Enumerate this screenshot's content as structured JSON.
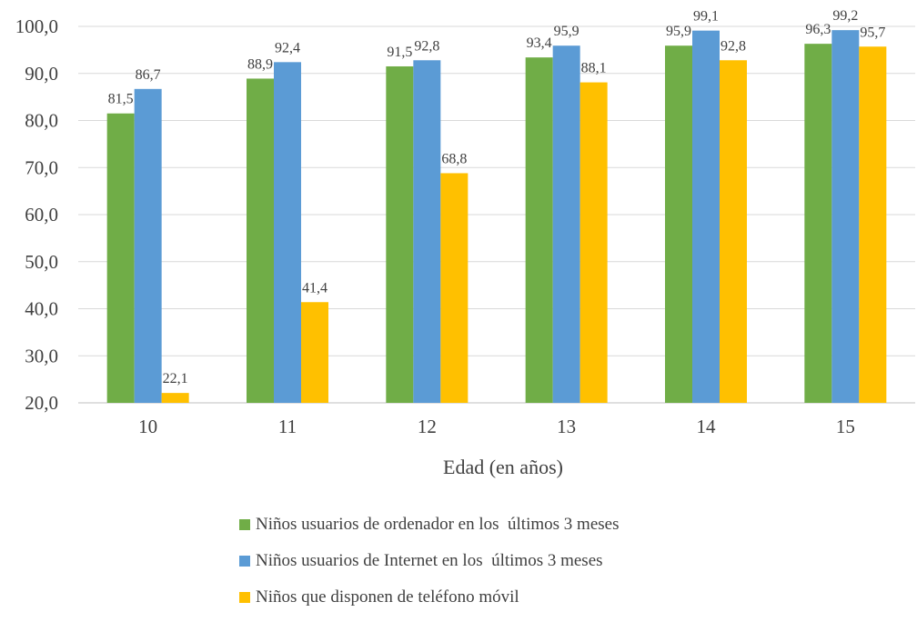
{
  "chart_data": {
    "type": "bar",
    "categories": [
      "10",
      "11",
      "12",
      "13",
      "14",
      "15"
    ],
    "series": [
      {
        "name": "Niños usuarios de ordenador en los  últimos 3 meses",
        "color": "#70AD47",
        "values": [
          81.5,
          88.9,
          91.5,
          93.4,
          95.9,
          96.3
        ]
      },
      {
        "name": "Niños usuarios de Internet en los  últimos 3 meses",
        "color": "#5B9BD5",
        "values": [
          86.7,
          92.4,
          92.8,
          95.9,
          99.1,
          99.2
        ]
      },
      {
        "name": "Niños que disponen de teléfono móvil",
        "color": "#FFC000",
        "values": [
          22.1,
          41.4,
          68.8,
          88.1,
          92.8,
          95.7
        ]
      }
    ],
    "data_labels": [
      [
        "81,5",
        "88,9",
        "91,5",
        "93,4",
        "95,9",
        "96,3"
      ],
      [
        "86,7",
        "92,4",
        "92,8",
        "95,9",
        "99,1",
        "99,2"
      ],
      [
        "22,1",
        "41,4",
        "68,8",
        "88,1",
        "92,8",
        "95,7"
      ]
    ],
    "ylim": [
      20,
      100
    ],
    "yticks": [
      20,
      30,
      40,
      50,
      60,
      70,
      80,
      90,
      100
    ],
    "ytick_labels": [
      "20,0",
      "30,0",
      "40,0",
      "50,0",
      "60,0",
      "70,0",
      "80,0",
      "90,0",
      "100,0"
    ],
    "xlabel": "Edad (en años)",
    "ylabel": "",
    "title": "",
    "grid": true,
    "legend_position": "bottom"
  }
}
